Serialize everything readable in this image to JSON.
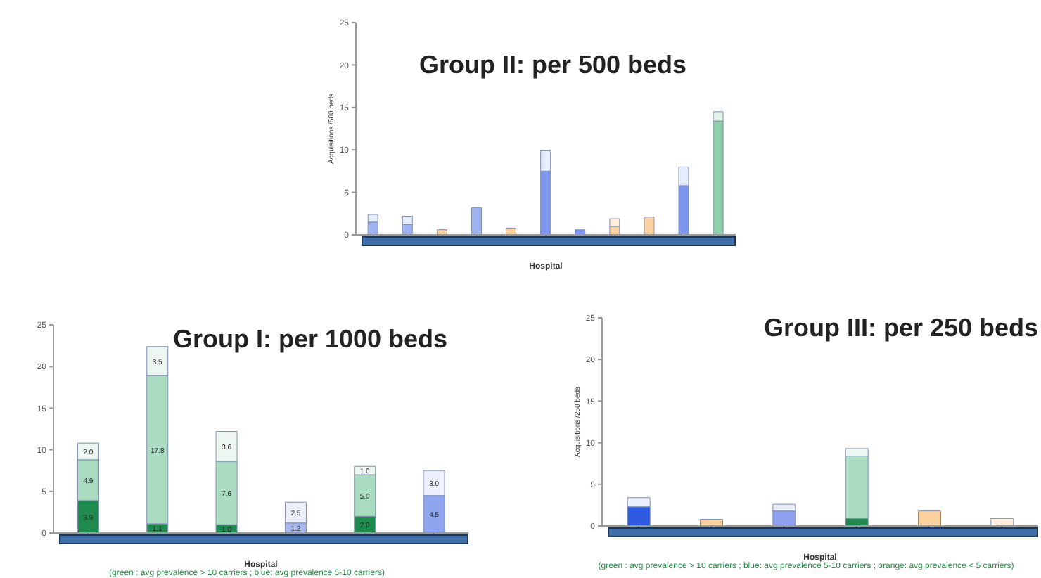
{
  "chart_data": [
    {
      "type": "bar",
      "title": "Group II: per 500 beds",
      "xlabel": "Hospital",
      "ylabel": "Acquisitions /500 beds",
      "stacked": true,
      "legend": false,
      "categories": [
        null,
        null,
        null,
        null,
        null,
        null,
        null,
        null,
        null,
        null,
        null
      ],
      "ylim": [
        0,
        25
      ],
      "yticks": [
        0,
        5,
        10,
        15,
        20,
        25
      ],
      "series": [
        {
          "colors": [
            "#9fb3f0",
            "#9fb3f0",
            "#fbd29f",
            "#9fb3f0",
            "#fbd29f",
            "#7b96ec",
            "#7b96ec",
            "#fbd29f",
            "#fbd29f",
            "#7b96ec",
            "#8fd0aa"
          ],
          "values": [
            1.5,
            1.2,
            0.6,
            3.2,
            0.8,
            7.5,
            0.6,
            1.0,
            2.1,
            5.8,
            13.4
          ]
        },
        {
          "colors": [
            "#e6ecfc",
            "#e6ecfc",
            null,
            null,
            null,
            "#e6ecfc",
            null,
            "#fdeedd",
            null,
            "#e6ecfc",
            "#e3f4ea"
          ],
          "values": [
            0.9,
            1.0,
            null,
            null,
            null,
            2.4,
            null,
            0.9,
            null,
            2.2,
            1.1
          ]
        }
      ]
    },
    {
      "type": "bar",
      "title": "Group I: per 1000 beds",
      "xlabel": "Hospital",
      "stacked": true,
      "legend": false,
      "categories": [
        null,
        null,
        null,
        null,
        null,
        null
      ],
      "ylim": [
        0,
        25
      ],
      "yticks": [
        0,
        5,
        10,
        15,
        20,
        25
      ],
      "annotations": [
        "(green : avg prevalence > 10 carriers ; blue: avg prevalence 5-10 carriers)"
      ],
      "series": [
        {
          "colors": [
            "#1e8a4e",
            "#1e8a4e",
            "#1e8a4e",
            null,
            "#1e8a4e",
            null
          ],
          "values": [
            3.9,
            1.1,
            1.0,
            null,
            2.0,
            null
          ],
          "value_labels": [
            "3.9",
            "1.1",
            "1.0",
            null,
            "2.0",
            null
          ]
        },
        {
          "colors": [
            "#a9dcc0",
            "#a9dcc0",
            "#a9dcc0",
            "#a9b8f0",
            "#a9dcc0",
            "#8fa6ee"
          ],
          "values": [
            4.9,
            17.8,
            7.6,
            1.2,
            5.0,
            4.5
          ],
          "value_labels": [
            "4.9",
            "17.8",
            "7.6",
            "1.2",
            "5.0",
            "4.5"
          ]
        },
        {
          "colors": [
            "#eef6f1",
            "#eef6f1",
            "#eef6f1",
            "#eceffc",
            "#eef6f1",
            "#eceffc"
          ],
          "values": [
            2.0,
            3.5,
            3.6,
            2.5,
            1.0,
            3.0
          ],
          "value_labels": [
            "2.0",
            "3.5",
            "3.6",
            "2.5",
            "1.0",
            "3.0"
          ]
        }
      ]
    },
    {
      "type": "bar",
      "title": "Group III: per 250 beds",
      "xlabel": "Hospital",
      "ylabel": "Acquisitions /250 beds",
      "stacked": true,
      "legend": false,
      "categories": [
        null,
        null,
        null,
        null,
        null,
        null
      ],
      "ylim": [
        0,
        25
      ],
      "yticks": [
        0,
        5,
        10,
        15,
        20,
        25
      ],
      "annotations": [
        "(green : avg prevalence > 10 carriers ; blue: avg prevalence 5-10 carriers ; orange: avg prevalence < 5 carriers)"
      ],
      "series": [
        {
          "colors": [
            "#2f5be0",
            null,
            null,
            "#1e8a4e",
            null,
            null
          ],
          "values": [
            2.3,
            null,
            null,
            0.9,
            null,
            null
          ]
        },
        {
          "colors": [
            null,
            "#fbd29f",
            "#8f9ff0",
            "#a9dcc0",
            "#fbd29f",
            "#fdeedd"
          ],
          "values": [
            null,
            0.8,
            1.8,
            7.5,
            1.8,
            0.9
          ]
        },
        {
          "colors": [
            "#eceffc",
            null,
            "#eceffc",
            "#eef6f1",
            null,
            null
          ],
          "values": [
            1.1,
            null,
            0.8,
            0.9,
            null,
            null
          ]
        }
      ]
    }
  ]
}
